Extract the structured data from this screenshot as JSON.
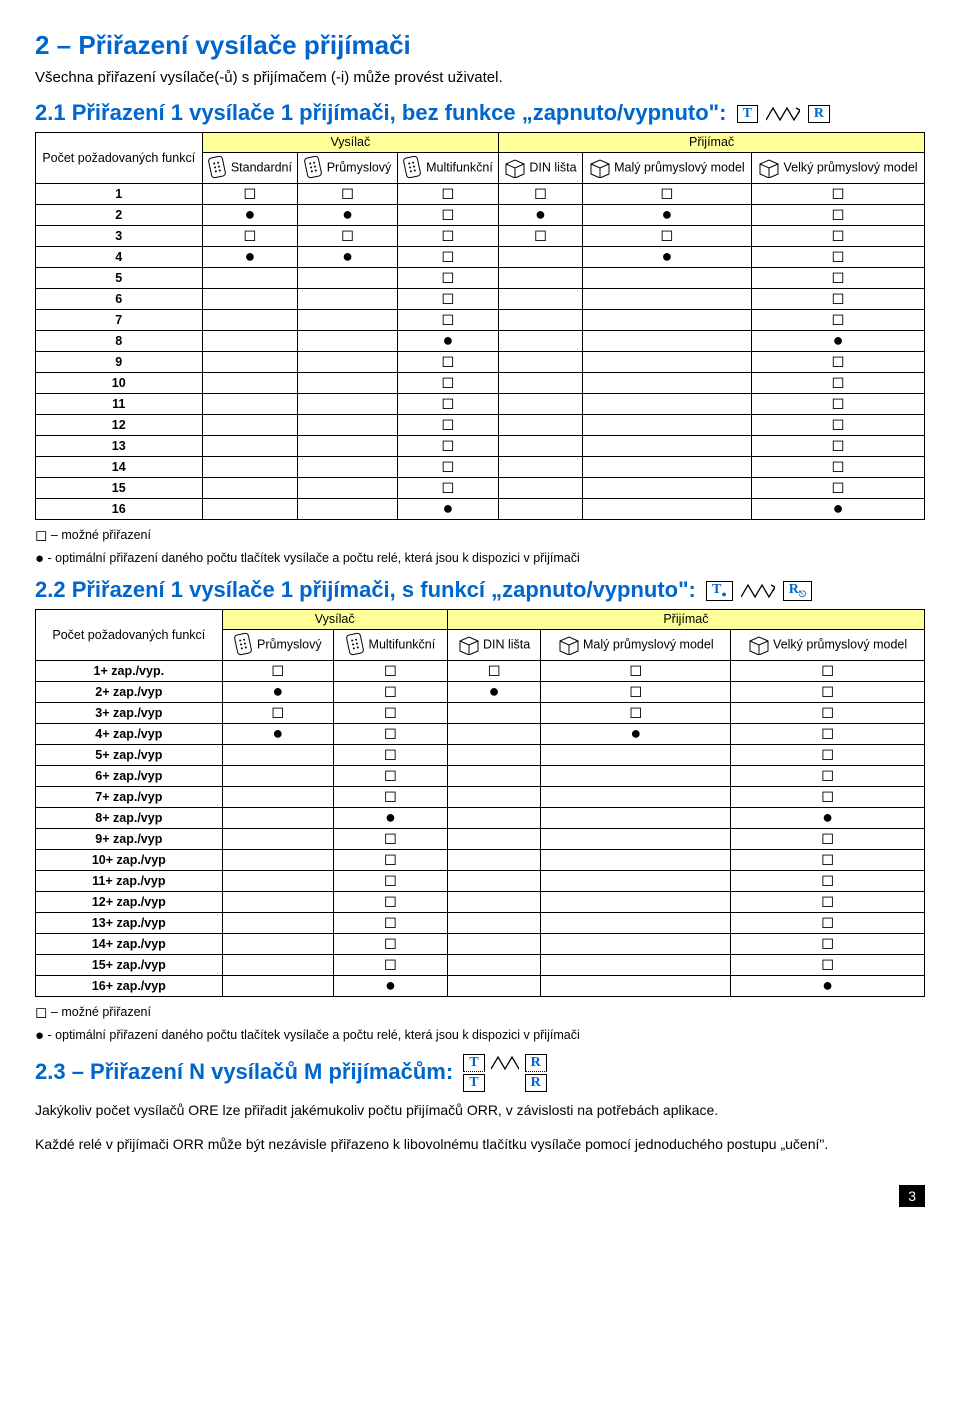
{
  "heading_main": "2 – Přiřazení vysílače přijímači",
  "intro": "Všechna přiřazení vysílače(-ů) s přijímačem (-i) může provést uživatel.",
  "section21": {
    "title": "2.1 Přiřazení 1 vysílače 1 přijímači, bez funkce „zapnuto/vypnuto\":",
    "letter_t": "T",
    "letter_r": "R",
    "col0": "Počet požadovaných funkcí",
    "vysilac": "Vysílač",
    "prijimac": "Přijímač",
    "c1": "Standardní",
    "c2": "Průmyslový",
    "c3": "Multifunkční",
    "c4": "DIN lišta",
    "c5": "Malý průmyslový model",
    "c6": "Velký průmyslový model",
    "rows": [
      {
        "n": "1",
        "v": [
          "sq",
          "sq",
          "sq",
          "sq",
          "sq",
          "sq"
        ]
      },
      {
        "n": "2",
        "v": [
          "dot",
          "dot",
          "sq",
          "dot",
          "dot",
          "sq"
        ]
      },
      {
        "n": "3",
        "v": [
          "sq",
          "sq",
          "sq",
          "sq",
          "sq",
          "sq"
        ]
      },
      {
        "n": "4",
        "v": [
          "dot",
          "dot",
          "sq",
          "",
          "dot",
          "sq"
        ]
      },
      {
        "n": "5",
        "v": [
          "",
          "",
          "sq",
          "",
          "",
          "sq"
        ]
      },
      {
        "n": "6",
        "v": [
          "",
          "",
          "sq",
          "",
          "",
          "sq"
        ]
      },
      {
        "n": "7",
        "v": [
          "",
          "",
          "sq",
          "",
          "",
          "sq"
        ]
      },
      {
        "n": "8",
        "v": [
          "",
          "",
          "dot",
          "",
          "",
          "dot"
        ]
      },
      {
        "n": "9",
        "v": [
          "",
          "",
          "sq",
          "",
          "",
          "sq"
        ]
      },
      {
        "n": "10",
        "v": [
          "",
          "",
          "sq",
          "",
          "",
          "sq"
        ]
      },
      {
        "n": "11",
        "v": [
          "",
          "",
          "sq",
          "",
          "",
          "sq"
        ]
      },
      {
        "n": "12",
        "v": [
          "",
          "",
          "sq",
          "",
          "",
          "sq"
        ]
      },
      {
        "n": "13",
        "v": [
          "",
          "",
          "sq",
          "",
          "",
          "sq"
        ]
      },
      {
        "n": "14",
        "v": [
          "",
          "",
          "sq",
          "",
          "",
          "sq"
        ]
      },
      {
        "n": "15",
        "v": [
          "",
          "",
          "sq",
          "",
          "",
          "sq"
        ]
      },
      {
        "n": "16",
        "v": [
          "",
          "",
          "dot",
          "",
          "",
          "dot"
        ]
      }
    ]
  },
  "legend1": " – možné přiřazení",
  "legend2": " - optimální přiřazení daného počtu tlačítek vysílače a počtu relé, která jsou k dispozici v přijímači",
  "section22": {
    "title": "2.2 Přiřazení 1 vysílače 1 přijímači, s funkcí „zapnuto/vypnuto\":",
    "letter_t": "T",
    "letter_r": "R",
    "col0": "Počet požadovaných funkcí",
    "vysilac": "Vysílač",
    "prijimac": "Přijímač",
    "c1": "Průmyslový",
    "c2": "Multifunkční",
    "c3": "DIN lišta",
    "c4": "Malý průmyslový model",
    "c5": "Velký průmyslový model",
    "rows": [
      {
        "n": "1+ zap./vyp.",
        "v": [
          "sq",
          "sq",
          "sq",
          "sq",
          "sq"
        ]
      },
      {
        "n": "2+ zap./vyp",
        "v": [
          "dot",
          "sq",
          "dot",
          "sq",
          "sq"
        ]
      },
      {
        "n": "3+ zap./vyp",
        "v": [
          "sq",
          "sq",
          "",
          "sq",
          "sq"
        ]
      },
      {
        "n": "4+ zap./vyp",
        "v": [
          "dot",
          "sq",
          "",
          "dot",
          "sq"
        ]
      },
      {
        "n": "5+ zap./vyp",
        "v": [
          "",
          "sq",
          "",
          "",
          "sq"
        ]
      },
      {
        "n": "6+ zap./vyp",
        "v": [
          "",
          "sq",
          "",
          "",
          "sq"
        ]
      },
      {
        "n": "7+ zap./vyp",
        "v": [
          "",
          "sq",
          "",
          "",
          "sq"
        ]
      },
      {
        "n": "8+ zap./vyp",
        "v": [
          "",
          "dot",
          "",
          "",
          "dot"
        ]
      },
      {
        "n": "9+ zap./vyp",
        "v": [
          "",
          "sq",
          "",
          "",
          "sq"
        ]
      },
      {
        "n": "10+ zap./vyp",
        "v": [
          "",
          "sq",
          "",
          "",
          "sq"
        ]
      },
      {
        "n": "11+ zap./vyp",
        "v": [
          "",
          "sq",
          "",
          "",
          "sq"
        ]
      },
      {
        "n": "12+ zap./vyp",
        "v": [
          "",
          "sq",
          "",
          "",
          "sq"
        ]
      },
      {
        "n": "13+ zap./vyp",
        "v": [
          "",
          "sq",
          "",
          "",
          "sq"
        ]
      },
      {
        "n": "14+ zap./vyp",
        "v": [
          "",
          "sq",
          "",
          "",
          "sq"
        ]
      },
      {
        "n": "15+ zap./vyp",
        "v": [
          "",
          "sq",
          "",
          "",
          "sq"
        ]
      },
      {
        "n": "16+ zap./vyp",
        "v": [
          "",
          "dot",
          "",
          "",
          "dot"
        ]
      }
    ]
  },
  "section23": {
    "title": "2.3 – Přiřazení N vysílačů M přijímačům:",
    "letter_t": "T",
    "letter_r": "R"
  },
  "footer1": "Jakýkoliv počet vysílačů ORE lze přiřadit jakémukoliv počtu přijímačů ORR, v závislosti na potřebách aplikace.",
  "footer2": "Každé relé v přijímači ORR může být nezávisle přiřazeno k libovolnému tlačítku vysílače pomocí jednoduchého postupu „učení\".",
  "page": "3",
  "colors": {
    "heading": "#0066cc",
    "yellow": "#ffff99"
  }
}
